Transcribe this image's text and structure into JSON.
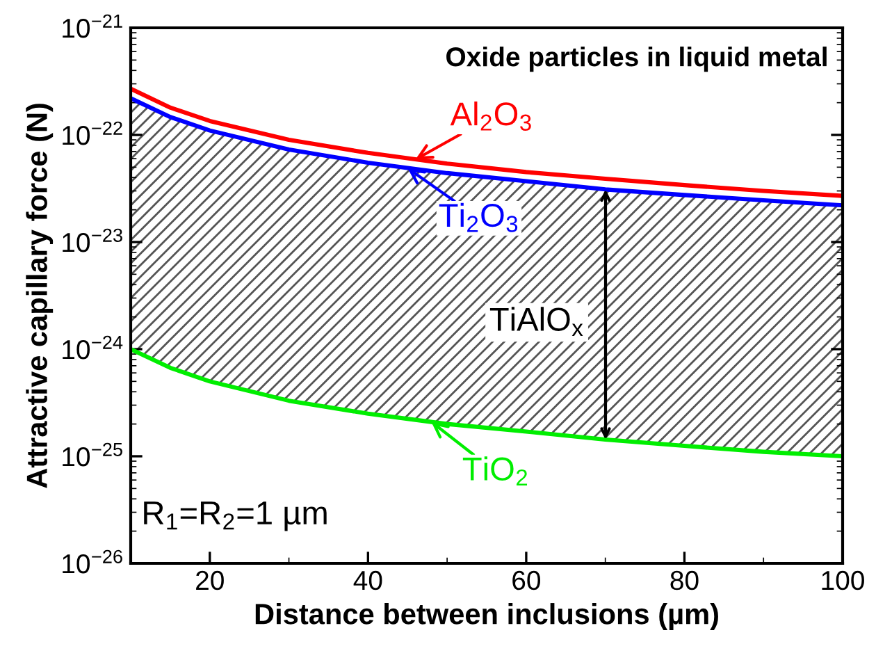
{
  "chart_data": {
    "type": "line",
    "title": "Oxide particles in liquid metal",
    "xlabel": "Distance between inclusions (µm)",
    "ylabel": "Attractive capillary force (N)",
    "log": "y",
    "grid": false,
    "xlim": [
      10,
      100
    ],
    "xticks": [
      20,
      40,
      60,
      80,
      100
    ],
    "ylim": [
      1e-26,
      1e-21
    ],
    "yticks": [
      {
        "value": 1e-26,
        "label": "10$^{−26}$"
      },
      {
        "value": 1e-25,
        "label": "10$^{−25}$"
      },
      {
        "value": 1e-24,
        "label": "10$^{−24}$"
      },
      {
        "value": 1e-23,
        "label": "10$^{−23}$"
      },
      {
        "value": 1e-22,
        "label": "10$^{−22}$"
      },
      {
        "value": 1e-21,
        "label": "10$^{−21}$"
      }
    ],
    "x": [
      10,
      15,
      20,
      30,
      40,
      50,
      60,
      70,
      80,
      90,
      100
    ],
    "series": [
      {
        "color": "#ff0000",
        "values": [
          2.7e-22,
          1.8e-22,
          1.35e-22,
          9e-23,
          6.8e-23,
          5.4e-23,
          4.5e-23,
          3.9e-23,
          3.4e-23,
          3e-23,
          2.7e-23
        ]
      },
      {
        "color": "#0000ff",
        "values": [
          2.2e-22,
          1.47e-22,
          1.1e-22,
          7.3e-23,
          5.5e-23,
          4.4e-23,
          3.7e-23,
          3.1e-23,
          2.75e-23,
          2.45e-23,
          2.2e-23
        ],
        "lower": [
          1e-24,
          6.7e-25,
          5e-25,
          3.3e-25,
          2.5e-25,
          2e-25,
          1.7e-25,
          1.43e-25,
          1.25e-25,
          1.1e-25,
          1e-25
        ],
        "upper": [
          2.2e-22,
          1.47e-22,
          1.1e-22,
          7.3e-23,
          5.5e-23,
          4.4e-23,
          3.7e-23,
          3.1e-23,
          2.75e-23,
          2.45e-23,
          2.2e-23
        ]
      },
      {
        "color": "#00ee00",
        "values": [
          1e-24,
          6.7e-25,
          5e-25,
          3.3e-25,
          2.5e-25,
          2e-25,
          1.7e-25,
          1.43e-25,
          1.25e-25,
          1.1e-25,
          1e-25
        ]
      }
    ],
    "annotations": [
      {
        "text": "Al$_{2}$O$_{3}$",
        "x": 46,
        "y": 5.9e-23
      },
      {
        "text": "Ti$_{2}$O$_{3}$",
        "x": 45,
        "y": 4.9e-23
      },
      "TiAlO$_{x}$",
      {
        "text": "TiO$_{2}$",
        "x": 48,
        "y": 2.1e-25
      },
      "R$_{1}$=R$_{2}$=1 µm"
    ]
  }
}
